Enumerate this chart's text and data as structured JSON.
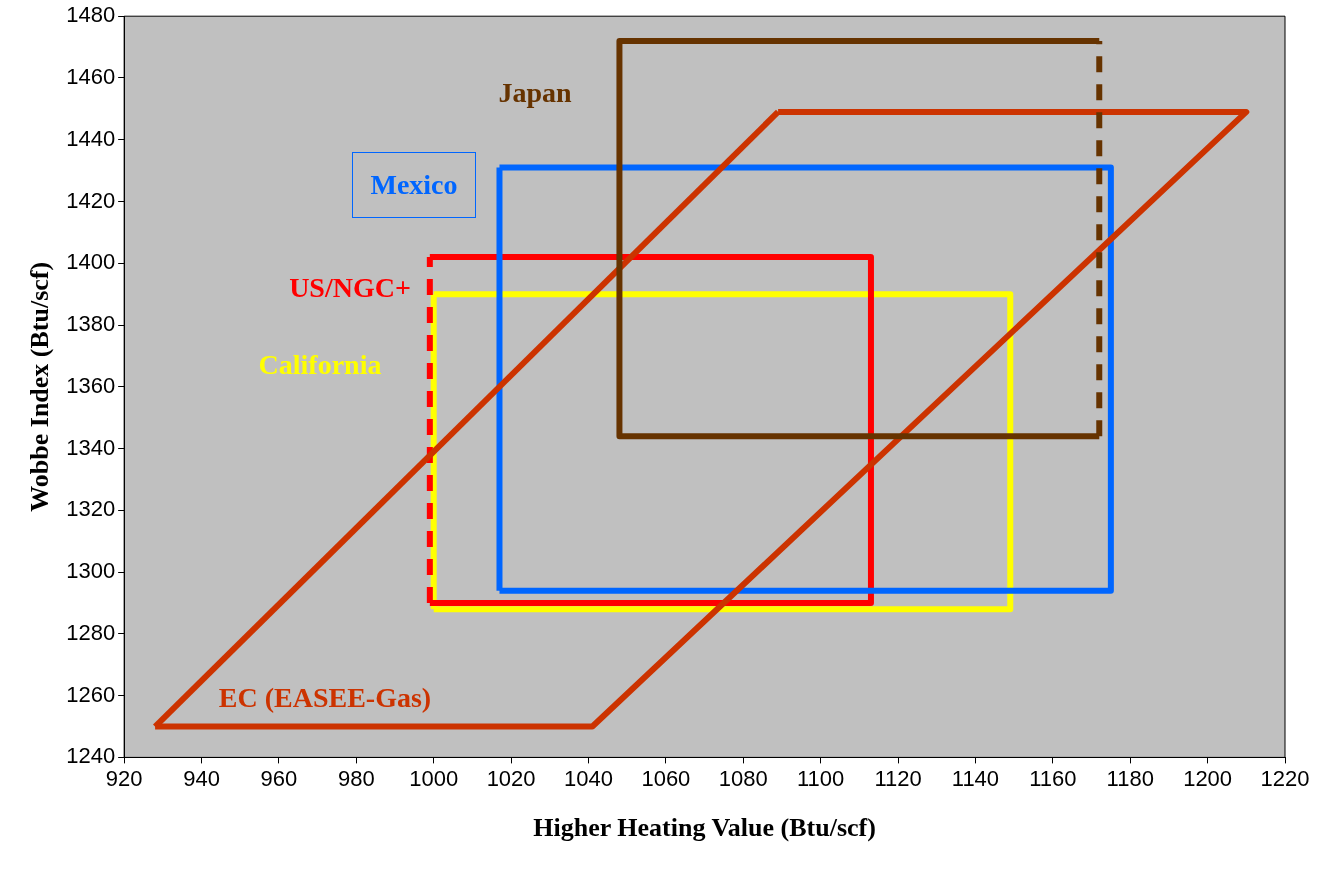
{
  "chart_data": {
    "type": "line",
    "xlabel": "Higher Heating Value (Btu/scf)",
    "ylabel": "Wobbe Index (Btu/scf)",
    "xlim": [
      920,
      1220
    ],
    "xticks": [
      920,
      940,
      960,
      980,
      1000,
      1020,
      1040,
      1060,
      1080,
      1100,
      1120,
      1140,
      1160,
      1180,
      1200,
      1220
    ],
    "ylim": [
      1240,
      1480
    ],
    "yticks": [
      1240,
      1260,
      1280,
      1300,
      1320,
      1340,
      1360,
      1380,
      1400,
      1420,
      1440,
      1460,
      1480
    ],
    "grid": false,
    "legend": false,
    "marker": "none",
    "line_style": "solid",
    "series": [
      {
        "name": "Japan",
        "color": "#663300",
        "x": [
          1172,
          1048,
          1048,
          1172
        ],
        "values": [
          1472,
          1472,
          1344,
          1344
        ]
      },
      {
        "color": "#663300",
        "line_style": "dashed",
        "x": [
          1172,
          1172
        ],
        "values": [
          1344,
          1472
        ]
      },
      {
        "name": "EC (EASEE-Gas)",
        "color": "#cc3300",
        "x": [
          928,
          1041,
          1210,
          1089
        ],
        "values": [
          1250,
          1250,
          1449,
          1449
        ]
      },
      {
        "color": "#cc3300",
        "x": [
          1089,
          928
        ],
        "values": [
          1449,
          1250
        ]
      },
      {
        "name": "Mexico",
        "color": "#0066ff",
        "x": [
          1017,
          1175,
          1175,
          1017
        ],
        "values": [
          1431,
          1431,
          1294,
          1294
        ]
      },
      {
        "color": "#0066ff",
        "x": [
          1017,
          1017
        ],
        "values": [
          1294,
          1431
        ]
      },
      {
        "name": "US/NGC+",
        "color": "#ff0000",
        "x": [
          999,
          1113,
          1113,
          999
        ],
        "values": [
          1402,
          1402,
          1290,
          1290
        ]
      },
      {
        "color": "#ff0000",
        "line_style": "dashed",
        "x": [
          999,
          999
        ],
        "values": [
          1290,
          1402
        ]
      },
      {
        "name": "California",
        "color": "#ffff00",
        "x": [
          1000,
          1149,
          1149,
          1000
        ],
        "values": [
          1390,
          1390,
          1288,
          1288
        ]
      },
      {
        "color": "#ffff00",
        "x": [
          1000,
          1000
        ],
        "values": [
          1288,
          1390
        ]
      }
    ]
  }
}
